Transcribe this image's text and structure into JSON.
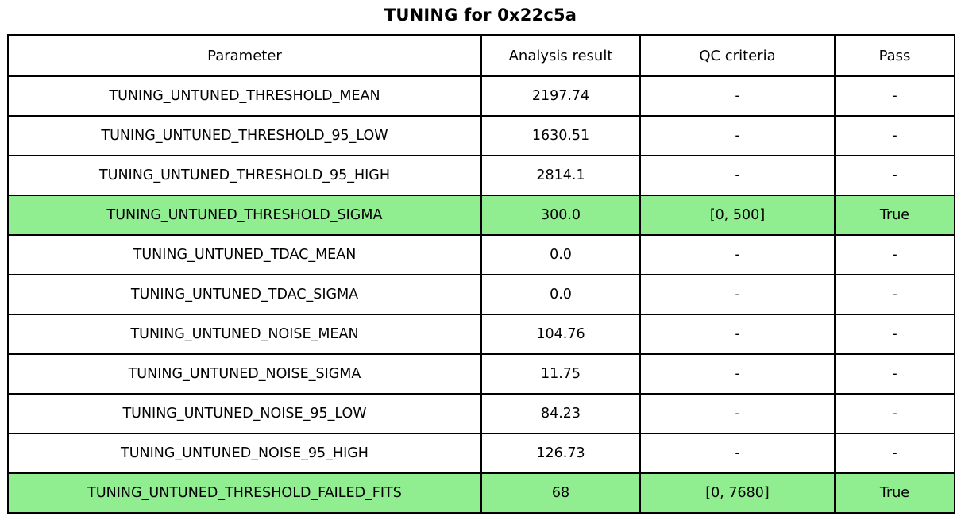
{
  "title": "TUNING for 0x22c5a",
  "colors": {
    "highlight": "#90EE90",
    "border": "#000000",
    "background": "#ffffff",
    "text": "#000000"
  },
  "table": {
    "headers": {
      "parameter": "Parameter",
      "result": "Analysis result",
      "qc": "QC criteria",
      "pass": "Pass"
    },
    "rows": [
      {
        "parameter": "TUNING_UNTUNED_THRESHOLD_MEAN",
        "result": "2197.74",
        "qc": "-",
        "pass": "-",
        "highlight": false
      },
      {
        "parameter": "TUNING_UNTUNED_THRESHOLD_95_LOW",
        "result": "1630.51",
        "qc": "-",
        "pass": "-",
        "highlight": false
      },
      {
        "parameter": "TUNING_UNTUNED_THRESHOLD_95_HIGH",
        "result": "2814.1",
        "qc": "-",
        "pass": "-",
        "highlight": false
      },
      {
        "parameter": "TUNING_UNTUNED_THRESHOLD_SIGMA",
        "result": "300.0",
        "qc": "[0, 500]",
        "pass": "True",
        "highlight": true
      },
      {
        "parameter": "TUNING_UNTUNED_TDAC_MEAN",
        "result": "0.0",
        "qc": "-",
        "pass": "-",
        "highlight": false
      },
      {
        "parameter": "TUNING_UNTUNED_TDAC_SIGMA",
        "result": "0.0",
        "qc": "-",
        "pass": "-",
        "highlight": false
      },
      {
        "parameter": "TUNING_UNTUNED_NOISE_MEAN",
        "result": "104.76",
        "qc": "-",
        "pass": "-",
        "highlight": false
      },
      {
        "parameter": "TUNING_UNTUNED_NOISE_SIGMA",
        "result": "11.75",
        "qc": "-",
        "pass": "-",
        "highlight": false
      },
      {
        "parameter": "TUNING_UNTUNED_NOISE_95_LOW",
        "result": "84.23",
        "qc": "-",
        "pass": "-",
        "highlight": false
      },
      {
        "parameter": "TUNING_UNTUNED_NOISE_95_HIGH",
        "result": "126.73",
        "qc": "-",
        "pass": "-",
        "highlight": false
      },
      {
        "parameter": "TUNING_UNTUNED_THRESHOLD_FAILED_FITS",
        "result": "68",
        "qc": "[0, 7680]",
        "pass": "True",
        "highlight": true
      }
    ]
  }
}
